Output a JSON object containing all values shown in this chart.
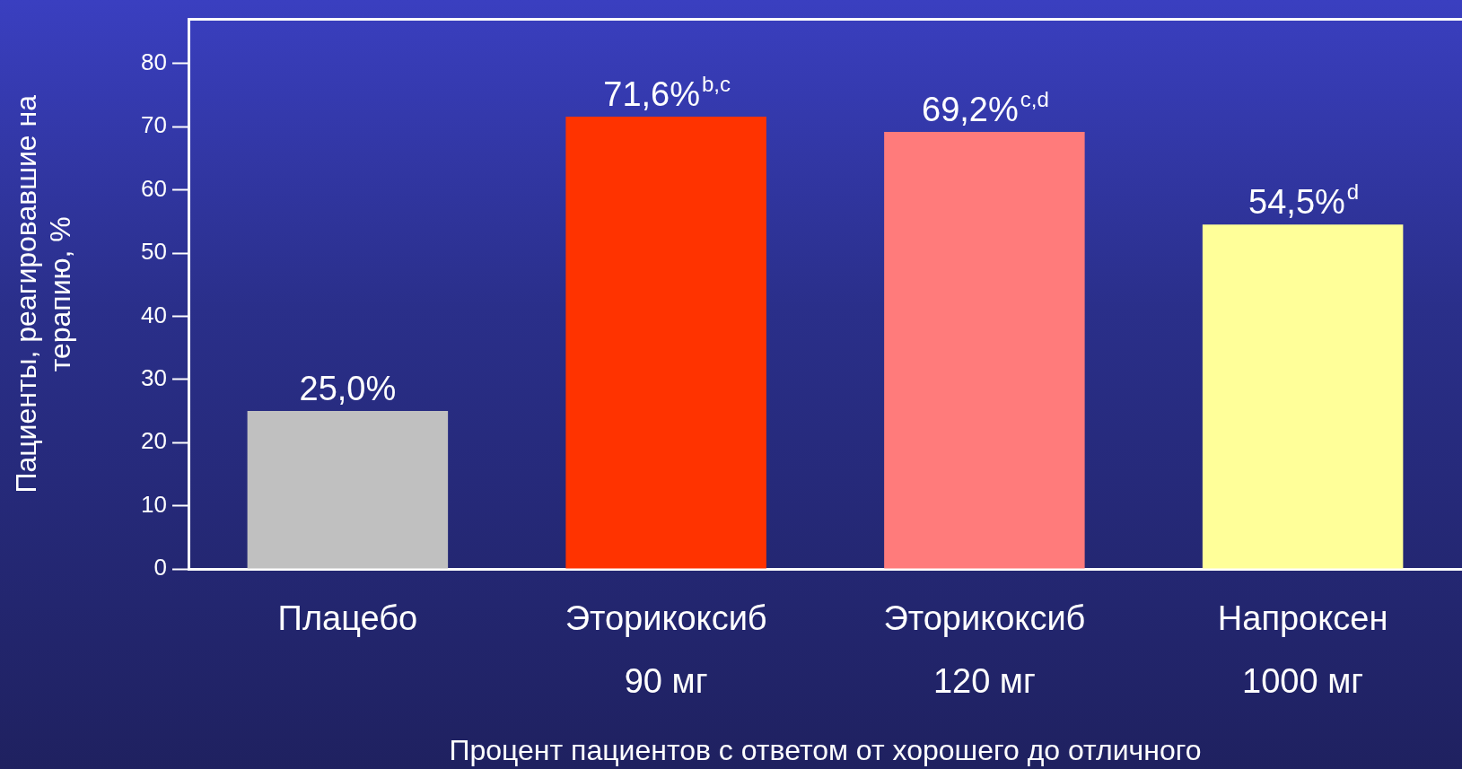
{
  "chart_data": {
    "type": "bar",
    "categories": [
      "Плацебо",
      "Эторикоксиб 90 мг",
      "Эторикоксиб 120 мг",
      "Напроксен 1000 мг"
    ],
    "values": [
      25.0,
      71.6,
      69.2,
      54.5
    ],
    "colors": [
      "#c0c0c0",
      "#ff3300",
      "#ff7b7b",
      "#ffff99"
    ],
    "value_labels": [
      "25,0%",
      "71,6%$^{b,c}$",
      "69,2%$^{c,d}$",
      "54,5%$^{d}$"
    ],
    "ylim": [
      0,
      87
    ],
    "yticks": [
      0,
      10,
      20,
      30,
      40,
      50,
      60,
      70,
      80
    ],
    "ylabel": "Пациенты, реагировавшие на терапию, %",
    "xlabel": "Процент пациентов с ответом от хорошего до отличного",
    "grid": false,
    "legend": false
  }
}
